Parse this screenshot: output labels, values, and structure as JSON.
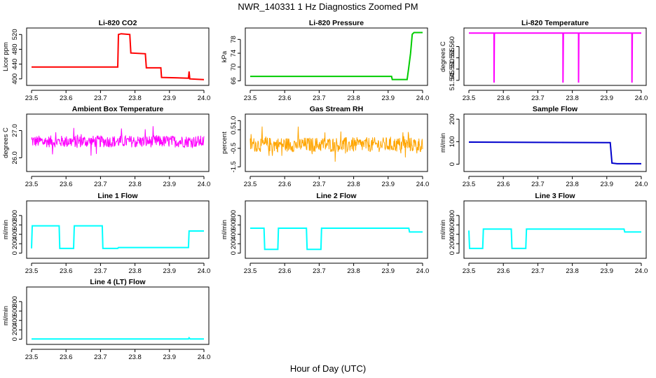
{
  "figure": {
    "title": "NWR_140331  1 Hz Diagnostics Zoomed PM",
    "xlabel": "Hour of Day (UTC)"
  },
  "chart_data": [
    {
      "type": "line",
      "title": "Li-820 CO2",
      "ylabel": "Licor ppm",
      "color": "#ff0000",
      "xlim": [
        23.5,
        24.0
      ],
      "xticks": [
        23.5,
        23.6,
        23.7,
        23.8,
        23.9,
        24.0
      ],
      "xtick_labels": [
        "23.5",
        "23.6",
        "23.7",
        "23.8",
        "23.9",
        "24.0"
      ],
      "ylim": [
        390,
        530
      ],
      "yticks": [
        400,
        440,
        480,
        520
      ],
      "ytick_labels": [
        "400",
        "440",
        "480",
        "520"
      ],
      "points": [
        [
          23.5,
          432
        ],
        [
          23.75,
          432
        ],
        [
          23.752,
          520
        ],
        [
          23.76,
          522
        ],
        [
          23.785,
          520
        ],
        [
          23.788,
          470
        ],
        [
          23.83,
          468
        ],
        [
          23.833,
          430
        ],
        [
          23.875,
          430
        ],
        [
          23.877,
          404
        ],
        [
          23.955,
          402
        ],
        [
          23.957,
          420
        ],
        [
          23.959,
          400
        ],
        [
          24.0,
          398
        ]
      ]
    },
    {
      "type": "line",
      "title": "Li-820 Pressure",
      "ylabel": "kPa",
      "color": "#00cc00",
      "xlim": [
        23.5,
        24.0
      ],
      "xticks": [
        23.5,
        23.6,
        23.7,
        23.8,
        23.9,
        24.0
      ],
      "xtick_labels": [
        "23.5",
        "23.6",
        "23.7",
        "23.8",
        "23.9",
        "24.0"
      ],
      "ylim": [
        65.5,
        80.5
      ],
      "yticks": [
        66,
        70,
        74,
        78
      ],
      "ytick_labels": [
        "66",
        "70",
        "74",
        "78"
      ],
      "points": [
        [
          23.5,
          67.3
        ],
        [
          23.91,
          67.3
        ],
        [
          23.912,
          66.4
        ],
        [
          23.955,
          66.4
        ],
        [
          23.96,
          70
        ],
        [
          23.965,
          74
        ],
        [
          23.97,
          79.5
        ],
        [
          23.975,
          80.0
        ],
        [
          24.0,
          80.0
        ]
      ]
    },
    {
      "type": "line",
      "title": "Li-820 Temperature",
      "ylabel": "degrees C",
      "color": "#ff00ff",
      "xlim": [
        23.5,
        24.0
      ],
      "xticks": [
        23.5,
        23.6,
        23.7,
        23.8,
        23.9,
        24.0
      ],
      "xtick_labels": [
        "23.5",
        "23.6",
        "23.7",
        "23.8",
        "23.9",
        "24.0"
      ],
      "ylim": [
        51.544,
        51.567
      ],
      "yticks": [
        51.545,
        51.55,
        51.555,
        51.56
      ],
      "ytick_labels": [
        "51.545",
        "51.550",
        "51.555",
        "51.560"
      ],
      "points": [
        [
          23.5,
          51.566
        ],
        [
          23.573,
          51.566
        ],
        [
          23.573,
          51.544
        ],
        [
          23.574,
          51.566
        ],
        [
          23.773,
          51.566
        ],
        [
          23.773,
          51.544
        ],
        [
          23.774,
          51.566
        ],
        [
          23.818,
          51.566
        ],
        [
          23.818,
          51.544
        ],
        [
          23.819,
          51.566
        ],
        [
          23.973,
          51.566
        ],
        [
          23.973,
          51.544
        ],
        [
          23.974,
          51.566
        ],
        [
          24.0,
          51.566
        ]
      ]
    },
    {
      "type": "line",
      "title": "Ambient Box Temperature",
      "ylabel": "degrees C",
      "color": "#ff00ff",
      "noise": 0.22,
      "xlim": [
        23.5,
        24.0
      ],
      "xticks": [
        23.5,
        23.6,
        23.7,
        23.8,
        23.9,
        24.0
      ],
      "xtick_labels": [
        "23.5",
        "23.6",
        "23.7",
        "23.8",
        "23.9",
        "24.0"
      ],
      "ylim": [
        25.6,
        27.5
      ],
      "yticks": [
        26.0,
        27.0
      ],
      "ytick_labels": [
        "26.0",
        "27.0"
      ],
      "points": [
        [
          23.5,
          26.6
        ],
        [
          24.0,
          26.6
        ]
      ]
    },
    {
      "type": "line",
      "title": "Gas Stream RH",
      "ylabel": "percent",
      "color": "#ffa500",
      "noise": 0.4,
      "xlim": [
        23.5,
        24.0
      ],
      "xticks": [
        23.5,
        23.6,
        23.7,
        23.8,
        23.9,
        24.0
      ],
      "xtick_labels": [
        "23.5",
        "23.6",
        "23.7",
        "23.8",
        "23.9",
        "24.0"
      ],
      "ylim": [
        -1.6,
        1.2
      ],
      "yticks": [
        -1.5,
        -0.5,
        0.5,
        1.0
      ],
      "ytick_labels": [
        "-1.5",
        "-0.5",
        "0.5",
        "1.0"
      ],
      "points": [
        [
          23.5,
          -0.3
        ],
        [
          24.0,
          -0.3
        ]
      ]
    },
    {
      "type": "line",
      "title": "Sample Flow",
      "ylabel": "ml/min",
      "color": "#0000cc",
      "xlim": [
        23.5,
        24.0
      ],
      "xticks": [
        23.5,
        23.6,
        23.7,
        23.8,
        23.9,
        24.0
      ],
      "xtick_labels": [
        "23.5",
        "23.6",
        "23.7",
        "23.8",
        "23.9",
        "24.0"
      ],
      "ylim": [
        -20,
        210
      ],
      "yticks": [
        0,
        100,
        200
      ],
      "ytick_labels": [
        "0",
        "100",
        "200"
      ],
      "points": [
        [
          23.5,
          98
        ],
        [
          23.91,
          96
        ],
        [
          23.912,
          60
        ],
        [
          23.915,
          5
        ],
        [
          23.93,
          2
        ],
        [
          24.0,
          2
        ]
      ]
    },
    {
      "type": "line",
      "title": "Line 1 Flow",
      "ylabel": "ml/min",
      "color": "#00ffff",
      "xlim": [
        23.5,
        24.0
      ],
      "xticks": [
        23.5,
        23.6,
        23.7,
        23.8,
        23.9,
        24.0
      ],
      "xtick_labels": [
        "23.5",
        "23.6",
        "23.7",
        "23.8",
        "23.9",
        "24.0"
      ],
      "ylim": [
        -50,
        1050
      ],
      "yticks": [
        0,
        200,
        400,
        600,
        800
      ],
      "ytick_labels": [
        "0",
        "200",
        "400",
        "600",
        "800"
      ],
      "points": [
        [
          23.5,
          100
        ],
        [
          23.502,
          580
        ],
        [
          23.58,
          580
        ],
        [
          23.582,
          100
        ],
        [
          23.622,
          100
        ],
        [
          23.624,
          580
        ],
        [
          23.705,
          580
        ],
        [
          23.707,
          100
        ],
        [
          23.75,
          100
        ],
        [
          23.752,
          120
        ],
        [
          23.955,
          120
        ],
        [
          23.957,
          470
        ],
        [
          24.0,
          470
        ]
      ]
    },
    {
      "type": "line",
      "title": "Line 2 Flow",
      "ylabel": "ml/min",
      "color": "#00ffff",
      "xlim": [
        23.5,
        24.0
      ],
      "xticks": [
        23.5,
        23.6,
        23.7,
        23.8,
        23.9,
        24.0
      ],
      "xtick_labels": [
        "23.5",
        "23.6",
        "23.7",
        "23.8",
        "23.9",
        "24.0"
      ],
      "ylim": [
        -50,
        1050
      ],
      "yticks": [
        0,
        200,
        400,
        600,
        800
      ],
      "ytick_labels": [
        "0",
        "200",
        "400",
        "600",
        "800"
      ],
      "points": [
        [
          23.5,
          530
        ],
        [
          23.54,
          530
        ],
        [
          23.542,
          80
        ],
        [
          23.58,
          80
        ],
        [
          23.582,
          530
        ],
        [
          23.663,
          530
        ],
        [
          23.665,
          80
        ],
        [
          23.705,
          80
        ],
        [
          23.707,
          530
        ],
        [
          23.96,
          530
        ],
        [
          23.962,
          450
        ],
        [
          24.0,
          450
        ]
      ]
    },
    {
      "type": "line",
      "title": "Line 3 Flow",
      "ylabel": "ml/min",
      "color": "#00ffff",
      "xlim": [
        23.5,
        24.0
      ],
      "xticks": [
        23.5,
        23.6,
        23.7,
        23.8,
        23.9,
        24.0
      ],
      "xtick_labels": [
        "23.5",
        "23.6",
        "23.7",
        "23.8",
        "23.9",
        "24.0"
      ],
      "ylim": [
        -50,
        1050
      ],
      "yticks": [
        0,
        200,
        400,
        600,
        800
      ],
      "ytick_labels": [
        "0",
        "200",
        "400",
        "600",
        "800"
      ],
      "points": [
        [
          23.5,
          480
        ],
        [
          23.502,
          100
        ],
        [
          23.54,
          100
        ],
        [
          23.542,
          510
        ],
        [
          23.623,
          510
        ],
        [
          23.625,
          100
        ],
        [
          23.665,
          100
        ],
        [
          23.667,
          510
        ],
        [
          23.95,
          510
        ],
        [
          23.952,
          450
        ],
        [
          24.0,
          450
        ]
      ]
    },
    {
      "type": "line",
      "title": "Line 4 (LT) Flow",
      "ylabel": "ml/min",
      "color": "#00ffff",
      "xlim": [
        23.5,
        24.0
      ],
      "xticks": [
        23.5,
        23.6,
        23.7,
        23.8,
        23.9,
        24.0
      ],
      "xtick_labels": [
        "23.5",
        "23.6",
        "23.7",
        "23.8",
        "23.9",
        "24.0"
      ],
      "ylim": [
        -50,
        1050
      ],
      "yticks": [
        0,
        200,
        400,
        600,
        800
      ],
      "ytick_labels": [
        "0",
        "200",
        "400",
        "600",
        "800"
      ],
      "points": [
        [
          23.5,
          5
        ],
        [
          23.955,
          5
        ],
        [
          23.957,
          30
        ],
        [
          23.96,
          5
        ],
        [
          24.0,
          5
        ]
      ]
    }
  ]
}
